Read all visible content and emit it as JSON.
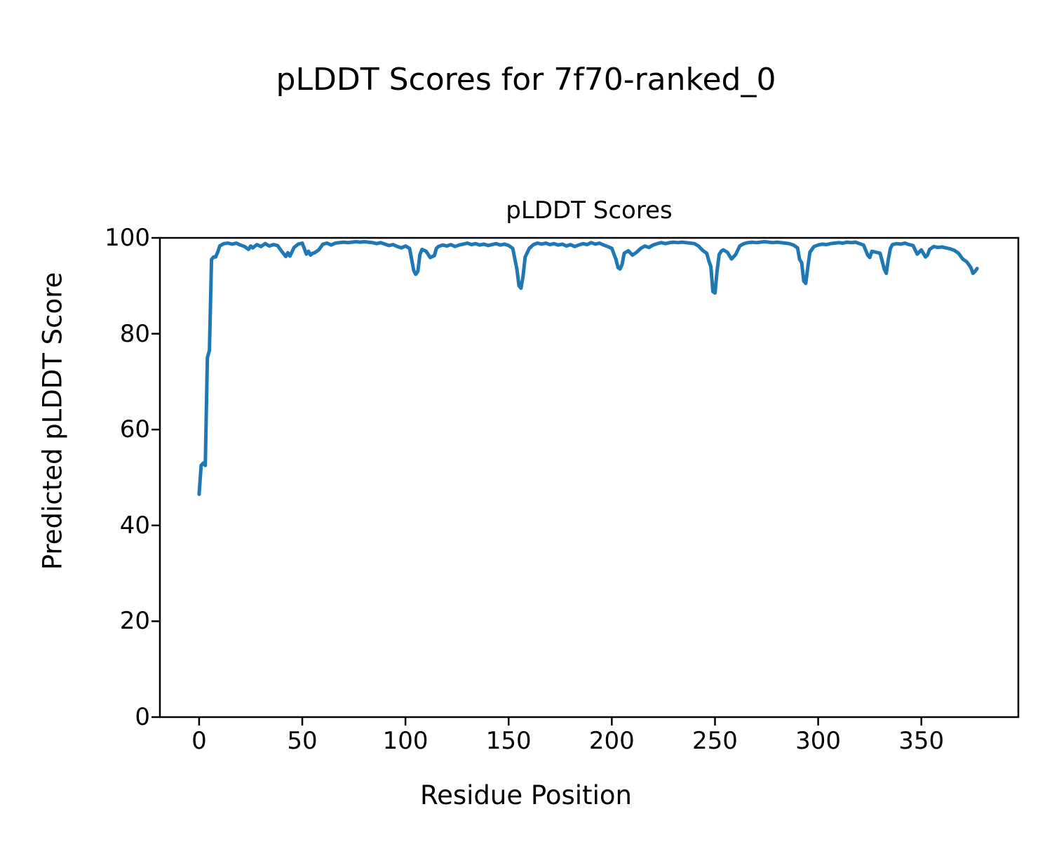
{
  "figure": {
    "suptitle": "pLDDT Scores for 7f70-ranked_0"
  },
  "chart_data": {
    "type": "line",
    "title": "pLDDT Scores",
    "xlabel": "Residue Position",
    "ylabel": "Predicted pLDDT Score",
    "xlim": [
      -19,
      397
    ],
    "ylim": [
      0,
      100
    ],
    "xticks": [
      0,
      50,
      100,
      150,
      200,
      250,
      300,
      350
    ],
    "yticks": [
      0,
      20,
      40,
      60,
      80,
      100
    ],
    "grid": false,
    "legend": "none",
    "line_color": "#1f77b4",
    "line_width": 5,
    "series_name": "pLDDT",
    "x": [
      0,
      1,
      2,
      3,
      4,
      5,
      6,
      7,
      8,
      9,
      10,
      12,
      14,
      16,
      18,
      20,
      22,
      24,
      25,
      26,
      28,
      30,
      32,
      34,
      36,
      38,
      40,
      42,
      43,
      44,
      46,
      48,
      50,
      52,
      53,
      54,
      55,
      56,
      58,
      60,
      62,
      64,
      66,
      68,
      70,
      72,
      74,
      76,
      78,
      80,
      82,
      84,
      86,
      88,
      90,
      92,
      94,
      96,
      98,
      100,
      102,
      104,
      105,
      106,
      107,
      108,
      110,
      112,
      114,
      115,
      116,
      118,
      120,
      122,
      124,
      126,
      128,
      130,
      132,
      134,
      136,
      138,
      140,
      142,
      144,
      146,
      148,
      150,
      152,
      154,
      155,
      156,
      157,
      158,
      160,
      162,
      164,
      166,
      168,
      170,
      172,
      174,
      176,
      178,
      180,
      182,
      184,
      186,
      188,
      190,
      192,
      194,
      196,
      198,
      200,
      202,
      203,
      204,
      205,
      206,
      208,
      210,
      212,
      214,
      216,
      218,
      220,
      222,
      224,
      226,
      228,
      230,
      232,
      234,
      236,
      238,
      240,
      242,
      244,
      246,
      247,
      248,
      249,
      250,
      251,
      252,
      253,
      254,
      256,
      258,
      260,
      262,
      264,
      266,
      268,
      270,
      272,
      274,
      276,
      278,
      280,
      282,
      284,
      286,
      288,
      290,
      291,
      292,
      293,
      294,
      295,
      296,
      298,
      300,
      302,
      304,
      306,
      308,
      310,
      312,
      314,
      316,
      318,
      320,
      322,
      324,
      325,
      326,
      328,
      330,
      332,
      333,
      334,
      335,
      336,
      338,
      340,
      342,
      344,
      346,
      348,
      350,
      352,
      353,
      354,
      356,
      358,
      360,
      362,
      364,
      366,
      368,
      370,
      372,
      373,
      374,
      375,
      376,
      377
    ],
    "y": [
      46.5,
      52.5,
      53.0,
      52.5,
      75.0,
      76.5,
      95.5,
      96.0,
      96.0,
      97.0,
      98.3,
      98.8,
      98.9,
      98.7,
      98.9,
      98.5,
      98.2,
      97.6,
      98.3,
      97.9,
      98.6,
      98.2,
      98.8,
      98.3,
      98.6,
      98.4,
      97.2,
      96.1,
      96.9,
      96.2,
      98.0,
      98.7,
      98.9,
      96.6,
      97.2,
      96.4,
      96.8,
      96.9,
      97.5,
      98.7,
      98.9,
      98.5,
      98.9,
      99.0,
      99.1,
      99.0,
      99.1,
      99.2,
      99.1,
      99.2,
      99.1,
      99.0,
      98.8,
      99.0,
      98.7,
      98.4,
      98.6,
      98.2,
      97.9,
      98.3,
      97.8,
      93.2,
      92.4,
      93.0,
      96.5,
      97.6,
      97.2,
      95.9,
      96.3,
      97.8,
      98.2,
      98.5,
      98.3,
      98.6,
      98.2,
      98.5,
      98.7,
      98.9,
      98.6,
      98.8,
      98.5,
      98.7,
      98.4,
      98.6,
      98.8,
      98.5,
      98.7,
      98.4,
      97.8,
      93.5,
      90.0,
      89.5,
      92.0,
      96.0,
      97.8,
      98.6,
      98.9,
      98.7,
      98.9,
      98.6,
      98.8,
      98.5,
      98.7,
      98.3,
      98.6,
      98.2,
      98.5,
      98.8,
      98.6,
      99.0,
      98.7,
      98.9,
      98.5,
      98.2,
      97.8,
      95.5,
      93.8,
      93.5,
      94.5,
      96.8,
      97.3,
      96.4,
      97.0,
      97.8,
      98.3,
      98.0,
      98.5,
      98.8,
      99.0,
      98.8,
      99.0,
      99.1,
      99.0,
      99.1,
      99.0,
      98.9,
      98.8,
      98.3,
      97.4,
      96.8,
      95.2,
      94.0,
      88.8,
      88.5,
      93.0,
      96.5,
      97.2,
      97.5,
      97.0,
      95.6,
      96.5,
      98.3,
      98.8,
      99.0,
      99.1,
      99.0,
      99.1,
      99.2,
      99.1,
      99.0,
      99.1,
      99.0,
      98.9,
      98.8,
      98.5,
      97.9,
      95.5,
      94.8,
      91.0,
      90.5,
      94.0,
      97.0,
      98.2,
      98.5,
      98.7,
      98.6,
      98.8,
      98.9,
      99.0,
      98.9,
      99.1,
      99.0,
      99.1,
      98.8,
      98.5,
      96.4,
      95.9,
      97.2,
      97.0,
      96.8,
      93.5,
      92.6,
      95.5,
      97.8,
      98.6,
      98.8,
      98.7,
      98.9,
      98.6,
      98.4,
      96.6,
      97.5,
      96.0,
      96.4,
      97.6,
      98.2,
      98.0,
      98.1,
      97.9,
      97.7,
      97.4,
      96.8,
      95.6,
      95.0,
      94.4,
      93.8,
      92.6,
      93.0,
      93.6
    ]
  }
}
